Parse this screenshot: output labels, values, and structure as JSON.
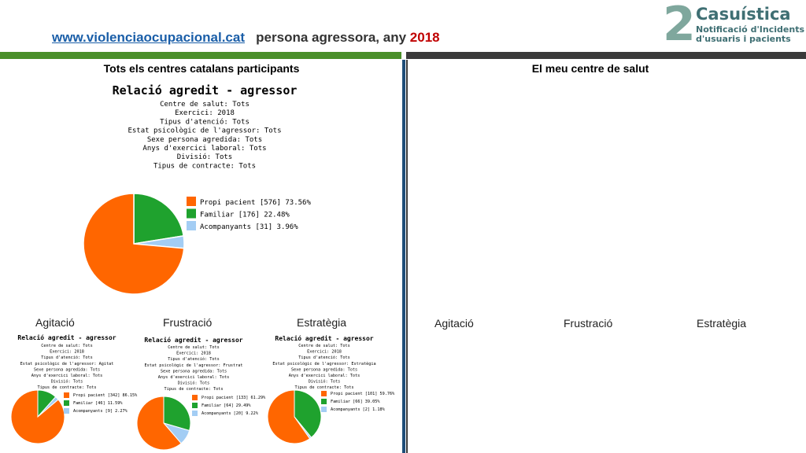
{
  "header": {
    "link_text": "www.violenciaocupacional.cat",
    "title_text": "persona agressora, any",
    "year": "2018",
    "green": "#4a8f2a",
    "dark": "#3a3a3a"
  },
  "logo": {
    "number": "2",
    "title": "Casuística",
    "subtitle_line1": "Notificació d'Incidents",
    "subtitle_line2": "d'usuaris i pacients",
    "color": "#3f6f73",
    "accent": "#7fa79d"
  },
  "columns": {
    "left_title": "Tots els centres catalans participants",
    "right_title": "El meu centre de salut"
  },
  "panel_labels": {
    "left": [
      "Agitació",
      "Frustració",
      "Estratègia"
    ],
    "right": [
      "Agitació",
      "Frustració",
      "Estratègia"
    ]
  },
  "colors": {
    "propi": "#ff6600",
    "familiar": "#1fa22e",
    "acompanyants": "#a3cdf4"
  },
  "chart_data": [
    {
      "type": "pie",
      "title": "Relació agredit - agressor",
      "subtitle_lines": [
        "Centre de salut: Tots",
        "Exercici: 2018",
        "Tipus d'atenció: Tots",
        "Estat psicològic de l'agressor: Tots",
        "Sexe persona agredida: Tots",
        "Anys d'exercici laboral: Tots",
        "Divisió: Tots",
        "Tipus de contracte: Tots"
      ],
      "legend_placement": "right",
      "series": [
        {
          "name": "Propi pacient",
          "value": 576,
          "percent": 73.56,
          "label": "Propi pacient [576] 73.56%"
        },
        {
          "name": "Familiar",
          "value": 176,
          "percent": 22.48,
          "label": "Familiar [176] 22.48%"
        },
        {
          "name": "Acompanyants",
          "value": 31,
          "percent": 3.96,
          "label": "Acompanyants [31] 3.96%"
        }
      ]
    },
    {
      "type": "pie",
      "title": "Relació agredit - agressor",
      "subtitle_lines": [
        "Centre de salut: Tots",
        "Exercici: 2018",
        "Tipus d'atenció: Tots",
        "Estat psicològic de l'agressor: Agitat",
        "Sexe persona agredida: Tots",
        "Anys d'exercici laboral: Tots",
        "Divisió: Tots",
        "Tipus de contracte: Tots"
      ],
      "legend_placement": "right",
      "series": [
        {
          "name": "Propi pacient",
          "value": 342,
          "percent": 86.15,
          "label": "Propi pacient [342] 86.15%"
        },
        {
          "name": "Familiar",
          "value": 46,
          "percent": 11.59,
          "label": "Familiar [46] 11.59%"
        },
        {
          "name": "Acompanyants",
          "value": 9,
          "percent": 2.27,
          "label": "Acompanyants [9] 2.27%"
        }
      ]
    },
    {
      "type": "pie",
      "title": "Relació agredit - agressor",
      "subtitle_lines": [
        "Centre de salut: Tots",
        "Exercici: 2018",
        "Tipus d'atenció: Tots",
        "Estat psicològic de l'agressor: Frustrat",
        "Sexe persona agredida: Tots",
        "Anys d'exercici laboral: Tots",
        "Divisió: Tots",
        "Tipus de contracte: Tots"
      ],
      "legend_placement": "right",
      "series": [
        {
          "name": "Propi pacient",
          "value": 133,
          "percent": 61.29,
          "label": "Propi pacient [133] 61.29%"
        },
        {
          "name": "Familiar",
          "value": 64,
          "percent": 29.49,
          "label": "Familiar [64] 29.49%"
        },
        {
          "name": "Acompanyants",
          "value": 20,
          "percent": 9.22,
          "label": "Acompanyants [20] 9.22%"
        }
      ]
    },
    {
      "type": "pie",
      "title": "Relació agredit - agressor",
      "subtitle_lines": [
        "Centre de salut: Tots",
        "Exercici: 2018",
        "Tipus d'atenció: Tots",
        "Estat psicològic de l'agressor: Estratègia",
        "Sexe persona agredida: Tots",
        "Anys d'exercici laboral: Tots",
        "Divisió: Tots",
        "Tipus de contracte: Tots"
      ],
      "legend_placement": "right",
      "series": [
        {
          "name": "Propi pacient",
          "value": 101,
          "percent": 59.76,
          "label": "Propi pacient [101] 59.76%"
        },
        {
          "name": "Familiar",
          "value": 66,
          "percent": 39.05,
          "label": "Familiar [66] 39.05%"
        },
        {
          "name": "Acompanyants",
          "value": 2,
          "percent": 1.18,
          "label": "Acompanyants [2] 1.18%"
        }
      ]
    }
  ]
}
